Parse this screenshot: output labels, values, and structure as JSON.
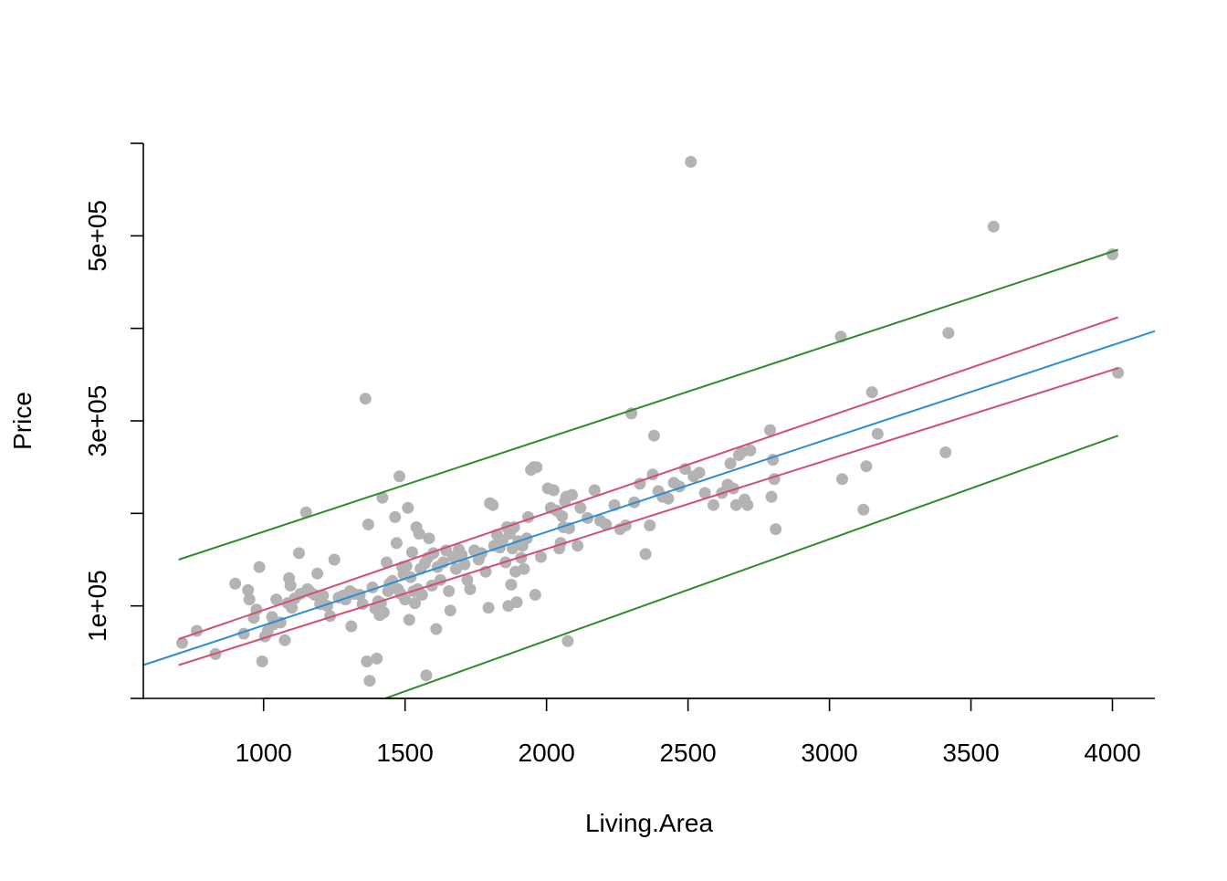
{
  "chart_data": {
    "type": "scatter",
    "title": "",
    "xlabel": "Living.Area",
    "ylabel": "Price",
    "xlim": [
      575,
      4150
    ],
    "ylim": [
      0,
      600000
    ],
    "x_ticks": [
      1000,
      1500,
      2000,
      2500,
      3000,
      3500,
      4000
    ],
    "x_tick_labels": [
      "1000",
      "1500",
      "2000",
      "2500",
      "3000",
      "3500",
      "4000"
    ],
    "y_ticks": [
      0,
      100000,
      200000,
      300000,
      400000,
      500000,
      600000
    ],
    "y_tick_labels": [
      "",
      "1e+05",
      "",
      "3e+05",
      "",
      "5e+05",
      ""
    ],
    "grid": false,
    "colors": {
      "points": "#b3b3b3",
      "fit_line": "#2a8dd9",
      "confidence_band": "#d0506e",
      "prediction_band": "#2e8b2e"
    },
    "points": [
      [
        712,
        60000
      ],
      [
        764,
        73000
      ],
      [
        830,
        48000
      ],
      [
        900,
        124000
      ],
      [
        930,
        70000
      ],
      [
        945,
        117000
      ],
      [
        950,
        107000
      ],
      [
        965,
        87000
      ],
      [
        975,
        96000
      ],
      [
        985,
        142000
      ],
      [
        995,
        40000
      ],
      [
        1005,
        67000
      ],
      [
        1015,
        73000
      ],
      [
        1030,
        88000
      ],
      [
        1035,
        80000
      ],
      [
        1045,
        107000
      ],
      [
        1060,
        82000
      ],
      [
        1075,
        63000
      ],
      [
        1085,
        103000
      ],
      [
        1090,
        130000
      ],
      [
        1095,
        122000
      ],
      [
        1100,
        98000
      ],
      [
        1110,
        108000
      ],
      [
        1125,
        157000
      ],
      [
        1130,
        113000
      ],
      [
        1150,
        201000
      ],
      [
        1155,
        118000
      ],
      [
        1165,
        115000
      ],
      [
        1180,
        112000
      ],
      [
        1190,
        135000
      ],
      [
        1200,
        102000
      ],
      [
        1210,
        111000
      ],
      [
        1225,
        100000
      ],
      [
        1235,
        89000
      ],
      [
        1250,
        150000
      ],
      [
        1265,
        109000
      ],
      [
        1280,
        111000
      ],
      [
        1290,
        107000
      ],
      [
        1305,
        116000
      ],
      [
        1310,
        78000
      ],
      [
        1320,
        113000
      ],
      [
        1340,
        112000
      ],
      [
        1350,
        102000
      ],
      [
        1360,
        324000
      ],
      [
        1365,
        40000
      ],
      [
        1370,
        188000
      ],
      [
        1375,
        19000
      ],
      [
        1385,
        120000
      ],
      [
        1395,
        97000
      ],
      [
        1400,
        43000
      ],
      [
        1405,
        105000
      ],
      [
        1410,
        90000
      ],
      [
        1415,
        103000
      ],
      [
        1420,
        217000
      ],
      [
        1425,
        93000
      ],
      [
        1435,
        147000
      ],
      [
        1440,
        116000
      ],
      [
        1445,
        124000
      ],
      [
        1455,
        127000
      ],
      [
        1465,
        196000
      ],
      [
        1470,
        168000
      ],
      [
        1475,
        118000
      ],
      [
        1480,
        240000
      ],
      [
        1485,
        113000
      ],
      [
        1490,
        142000
      ],
      [
        1495,
        134000
      ],
      [
        1500,
        107000
      ],
      [
        1505,
        143000
      ],
      [
        1510,
        206000
      ],
      [
        1515,
        85000
      ],
      [
        1520,
        131000
      ],
      [
        1525,
        158000
      ],
      [
        1530,
        116000
      ],
      [
        1535,
        103000
      ],
      [
        1540,
        185000
      ],
      [
        1545,
        118000
      ],
      [
        1550,
        178000
      ],
      [
        1555,
        140000
      ],
      [
        1560,
        112000
      ],
      [
        1570,
        146000
      ],
      [
        1575,
        25000
      ],
      [
        1580,
        152000
      ],
      [
        1585,
        173000
      ],
      [
        1595,
        122000
      ],
      [
        1600,
        157000
      ],
      [
        1610,
        75000
      ],
      [
        1615,
        142000
      ],
      [
        1625,
        128000
      ],
      [
        1635,
        147000
      ],
      [
        1645,
        160000
      ],
      [
        1655,
        116000
      ],
      [
        1660,
        95000
      ],
      [
        1670,
        153000
      ],
      [
        1680,
        140000
      ],
      [
        1690,
        161000
      ],
      [
        1700,
        155000
      ],
      [
        1710,
        145000
      ],
      [
        1720,
        128000
      ],
      [
        1730,
        118000
      ],
      [
        1745,
        160000
      ],
      [
        1760,
        150000
      ],
      [
        1770,
        157000
      ],
      [
        1785,
        137000
      ],
      [
        1795,
        98000
      ],
      [
        1800,
        211000
      ],
      [
        1810,
        209000
      ],
      [
        1815,
        165000
      ],
      [
        1825,
        177000
      ],
      [
        1835,
        163000
      ],
      [
        1845,
        171000
      ],
      [
        1855,
        147000
      ],
      [
        1860,
        185000
      ],
      [
        1865,
        100000
      ],
      [
        1870,
        178000
      ],
      [
        1875,
        123000
      ],
      [
        1880,
        162000
      ],
      [
        1885,
        185000
      ],
      [
        1890,
        137000
      ],
      [
        1895,
        104000
      ],
      [
        1900,
        170000
      ],
      [
        1910,
        152000
      ],
      [
        1915,
        165000
      ],
      [
        1920,
        140000
      ],
      [
        1930,
        173000
      ],
      [
        1935,
        196000
      ],
      [
        1945,
        247000
      ],
      [
        1955,
        250000
      ],
      [
        1960,
        112000
      ],
      [
        1965,
        250000
      ],
      [
        1980,
        153000
      ],
      [
        2005,
        227000
      ],
      [
        2015,
        206000
      ],
      [
        2025,
        225000
      ],
      [
        2035,
        203000
      ],
      [
        2045,
        162000
      ],
      [
        2050,
        168000
      ],
      [
        2055,
        197000
      ],
      [
        2060,
        185000
      ],
      [
        2065,
        213000
      ],
      [
        2070,
        218000
      ],
      [
        2075,
        62000
      ],
      [
        2080,
        184000
      ],
      [
        2090,
        220000
      ],
      [
        2110,
        165000
      ],
      [
        2120,
        206000
      ],
      [
        2145,
        195000
      ],
      [
        2170,
        225000
      ],
      [
        2190,
        192000
      ],
      [
        2210,
        188000
      ],
      [
        2240,
        209000
      ],
      [
        2260,
        183000
      ],
      [
        2280,
        187000
      ],
      [
        2300,
        308000
      ],
      [
        2310,
        212000
      ],
      [
        2330,
        232000
      ],
      [
        2350,
        156000
      ],
      [
        2365,
        187000
      ],
      [
        2375,
        242000
      ],
      [
        2380,
        284000
      ],
      [
        2395,
        224000
      ],
      [
        2410,
        218000
      ],
      [
        2430,
        216000
      ],
      [
        2450,
        233000
      ],
      [
        2470,
        229000
      ],
      [
        2490,
        248000
      ],
      [
        2510,
        580000
      ],
      [
        2520,
        240000
      ],
      [
        2540,
        244000
      ],
      [
        2560,
        222000
      ],
      [
        2590,
        209000
      ],
      [
        2620,
        222000
      ],
      [
        2640,
        231000
      ],
      [
        2650,
        254000
      ],
      [
        2660,
        227000
      ],
      [
        2670,
        209000
      ],
      [
        2680,
        263000
      ],
      [
        2690,
        266000
      ],
      [
        2700,
        215000
      ],
      [
        2710,
        209000
      ],
      [
        2720,
        268000
      ],
      [
        2790,
        290000
      ],
      [
        2795,
        218000
      ],
      [
        2800,
        258000
      ],
      [
        2805,
        237000
      ],
      [
        2810,
        183000
      ],
      [
        3040,
        391000
      ],
      [
        3045,
        237000
      ],
      [
        3120,
        204000
      ],
      [
        3130,
        251000
      ],
      [
        3150,
        331000
      ],
      [
        3170,
        286000
      ],
      [
        3410,
        266000
      ],
      [
        3420,
        395000
      ],
      [
        3580,
        510000
      ],
      [
        4000,
        480000
      ],
      [
        4020,
        352000
      ]
    ],
    "fit_line": {
      "x": [
        575,
        4150
      ],
      "y": [
        36000,
        397000
      ]
    },
    "confidence_band": {
      "upper": {
        "x": [
          700,
          4020
        ],
        "y": [
          64000,
          412000
        ]
      },
      "lower": {
        "x": [
          700,
          4020
        ],
        "y": [
          36000,
          357000
        ]
      }
    },
    "prediction_band": {
      "upper": {
        "x": [
          700,
          4020
        ],
        "y": [
          150000,
          485000
        ]
      },
      "lower": {
        "x": [
          700,
          4020
        ],
        "y": [
          -80000,
          284000
        ]
      }
    }
  }
}
